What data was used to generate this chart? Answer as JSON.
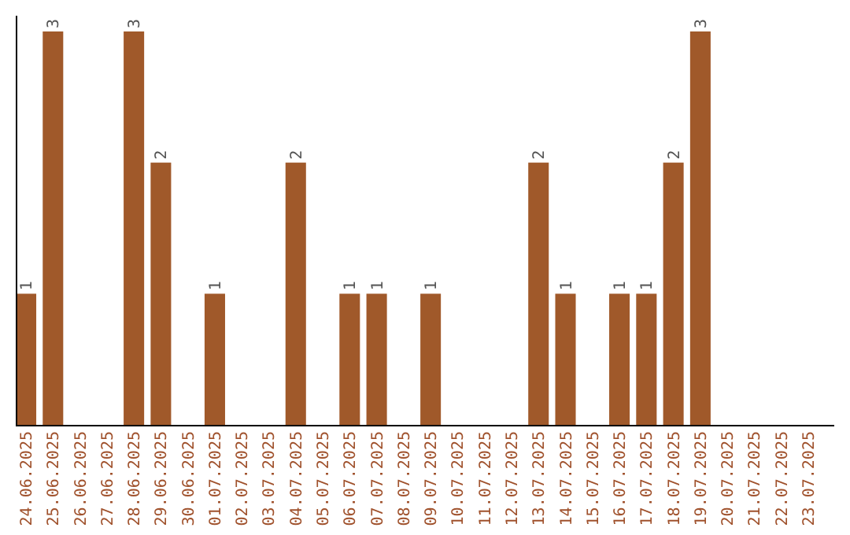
{
  "chart_data": {
    "type": "bar",
    "categories": [
      "24.06.2025",
      "25.06.2025",
      "26.06.2025",
      "27.06.2025",
      "28.06.2025",
      "29.06.2025",
      "30.06.2025",
      "01.07.2025",
      "02.07.2025",
      "03.07.2025",
      "04.07.2025",
      "05.07.2025",
      "06.07.2025",
      "07.07.2025",
      "08.07.2025",
      "09.07.2025",
      "10.07.2025",
      "11.07.2025",
      "12.07.2025",
      "13.07.2025",
      "14.07.2025",
      "15.07.2025",
      "16.07.2025",
      "17.07.2025",
      "18.07.2025",
      "19.07.2025",
      "20.07.2025",
      "21.07.2025",
      "22.07.2025",
      "23.07.2025"
    ],
    "values": [
      1,
      3,
      0,
      0,
      3,
      2,
      0,
      1,
      0,
      0,
      2,
      0,
      1,
      1,
      0,
      1,
      0,
      0,
      0,
      2,
      1,
      0,
      1,
      1,
      2,
      3,
      0,
      0,
      0,
      0
    ],
    "value_labels": [
      "1",
      "3",
      null,
      null,
      "3",
      "2",
      null,
      "1",
      null,
      null,
      "2",
      null,
      "1",
      "1",
      null,
      "1",
      null,
      null,
      null,
      "2",
      "1",
      null,
      "1",
      "1",
      "2",
      "3",
      null,
      null,
      null,
      null
    ],
    "color": "#a0592a",
    "ylim": [
      0,
      3
    ],
    "tick_labels": "x"
  }
}
